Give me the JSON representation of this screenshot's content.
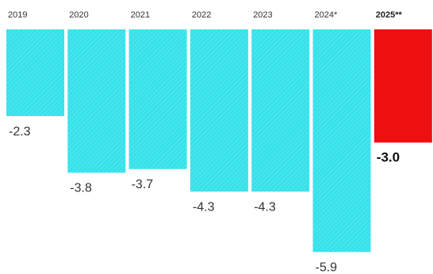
{
  "chart_data": {
    "type": "bar",
    "title": "",
    "xlabel": "",
    "ylabel": "",
    "categories": [
      "2019",
      "2020",
      "2021",
      "2022",
      "2023",
      "2024*",
      "2025**"
    ],
    "values": [
      -2.3,
      -3.8,
      -3.7,
      -4.3,
      -4.3,
      -5.9,
      -3.0
    ],
    "value_labels": [
      "-2.3",
      "-3.8",
      "-3.7",
      "-4.3",
      "-4.3",
      "-5.9",
      "-3.0"
    ],
    "highlight_index": 6,
    "ylim": [
      -6.0,
      0
    ],
    "grid": false,
    "colors": {
      "bar": "#35e1ea",
      "bar_pattern": "#6fedf2",
      "highlight": "#ee0f10",
      "text": "#333333"
    }
  }
}
